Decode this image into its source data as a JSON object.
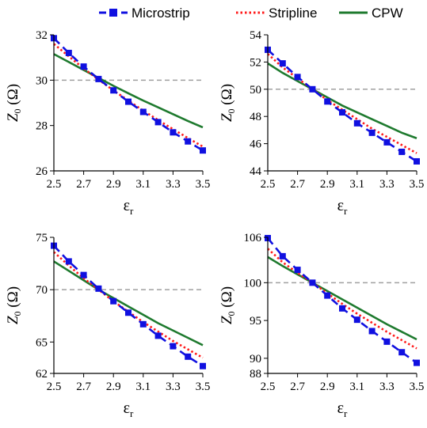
{
  "legend": [
    {
      "label": "Microstrip",
      "color": "#1010e0",
      "style": "dashed-square"
    },
    {
      "label": "Stripline",
      "color": "#ff1a1a",
      "style": "dotted"
    },
    {
      "label": "CPW",
      "color": "#1e7a2e",
      "style": "solid"
    }
  ],
  "chart_data": [
    {
      "type": "line",
      "xlabel": "ε",
      "xlabel_sub": "r",
      "ylabel": "Z",
      "ylabel_sub": "0",
      "ylabel_unit": " (Ω)",
      "xlim": [
        2.5,
        3.5
      ],
      "ylim": [
        26,
        32
      ],
      "xticks": [
        "2.5",
        "2.7",
        "2.9",
        "3.1",
        "3.3",
        "3.5"
      ],
      "yticks": [
        26,
        28,
        30,
        32
      ],
      "reference_line": 30,
      "x": [
        2.5,
        2.6,
        2.7,
        2.8,
        2.9,
        3.0,
        3.1,
        3.2,
        3.3,
        3.4,
        3.5
      ],
      "series": [
        {
          "name": "Microstrip",
          "values": [
            31.85,
            31.2,
            30.6,
            30.05,
            29.55,
            29.05,
            28.6,
            28.15,
            27.7,
            27.3,
            26.9
          ]
        },
        {
          "name": "Stripline",
          "values": [
            31.6,
            31.05,
            30.52,
            30.02,
            29.55,
            29.1,
            28.66,
            28.24,
            27.84,
            27.45,
            27.07
          ]
        },
        {
          "name": "CPW",
          "values": [
            31.15,
            30.8,
            30.45,
            30.1,
            29.75,
            29.42,
            29.1,
            28.8,
            28.5,
            28.2,
            27.92
          ]
        }
      ]
    },
    {
      "type": "line",
      "xlabel": "ε",
      "xlabel_sub": "r",
      "ylabel": "Z",
      "ylabel_sub": "0",
      "ylabel_unit": " (Ω)",
      "xlim": [
        2.5,
        3.5
      ],
      "ylim": [
        44,
        54
      ],
      "xticks": [
        "2.5",
        "2.7",
        "2.9",
        "3.1",
        "3.3",
        "3.5"
      ],
      "yticks": [
        44,
        46,
        48,
        50,
        52,
        54
      ],
      "reference_line": 50,
      "x": [
        2.5,
        2.6,
        2.7,
        2.8,
        2.9,
        3.0,
        3.1,
        3.2,
        3.3,
        3.4,
        3.5
      ],
      "series": [
        {
          "name": "Microstrip",
          "values": [
            52.9,
            51.9,
            50.9,
            50.0,
            49.1,
            48.3,
            47.5,
            46.8,
            46.1,
            45.4,
            44.7
          ]
        },
        {
          "name": "Stripline",
          "values": [
            52.6,
            51.6,
            50.8,
            50.0,
            49.2,
            48.5,
            47.8,
            47.1,
            46.5,
            45.9,
            45.3
          ]
        },
        {
          "name": "CPW",
          "values": [
            51.9,
            51.2,
            50.6,
            50.0,
            49.4,
            48.8,
            48.3,
            47.8,
            47.3,
            46.8,
            46.4
          ]
        }
      ]
    },
    {
      "type": "line",
      "xlabel": "ε",
      "xlabel_sub": "r",
      "ylabel": "Z",
      "ylabel_sub": "0",
      "ylabel_unit": " (Ω)",
      "xlim": [
        2.5,
        3.5
      ],
      "ylim": [
        62,
        75
      ],
      "xticks": [
        "2.5",
        "2.7",
        "2.9",
        "3.1",
        "3.3",
        "3.5"
      ],
      "yticks": [
        62,
        65,
        70,
        75
      ],
      "reference_line": 70,
      "x": [
        2.5,
        2.6,
        2.7,
        2.8,
        2.9,
        3.0,
        3.1,
        3.2,
        3.3,
        3.4,
        3.5
      ],
      "series": [
        {
          "name": "Microstrip",
          "values": [
            74.2,
            72.7,
            71.4,
            70.1,
            68.9,
            67.8,
            66.7,
            65.6,
            64.6,
            63.6,
            62.7
          ]
        },
        {
          "name": "Stripline",
          "values": [
            73.6,
            72.3,
            71.1,
            70.0,
            68.9,
            67.9,
            66.9,
            66.0,
            65.1,
            64.3,
            63.5
          ]
        },
        {
          "name": "CPW",
          "values": [
            72.7,
            71.8,
            70.9,
            70.0,
            69.2,
            68.4,
            67.6,
            66.8,
            66.1,
            65.4,
            64.7
          ]
        }
      ]
    },
    {
      "type": "line",
      "xlabel": "ε",
      "xlabel_sub": "r",
      "ylabel": "Z",
      "ylabel_sub": "0",
      "ylabel_unit": " (Ω)",
      "xlim": [
        2.5,
        3.5
      ],
      "ylim": [
        88,
        106
      ],
      "xticks": [
        "2.5",
        "2.7",
        "2.9",
        "3.1",
        "3.3",
        "3.5"
      ],
      "yticks": [
        88,
        90,
        95,
        100,
        106
      ],
      "reference_line": 100,
      "x": [
        2.5,
        2.6,
        2.7,
        2.8,
        2.9,
        3.0,
        3.1,
        3.2,
        3.3,
        3.4,
        3.5
      ],
      "series": [
        {
          "name": "Microstrip",
          "values": [
            105.9,
            103.5,
            101.7,
            100.0,
            98.3,
            96.6,
            95.1,
            93.6,
            92.2,
            90.8,
            89.4
          ]
        },
        {
          "name": "Stripline",
          "values": [
            104.5,
            102.7,
            101.3,
            100.0,
            98.6,
            97.2,
            95.9,
            94.7,
            93.5,
            92.4,
            91.3
          ]
        },
        {
          "name": "CPW",
          "values": [
            103.4,
            102.2,
            101.1,
            100.0,
            98.9,
            97.8,
            96.7,
            95.6,
            94.5,
            93.5,
            92.5
          ]
        }
      ]
    }
  ]
}
